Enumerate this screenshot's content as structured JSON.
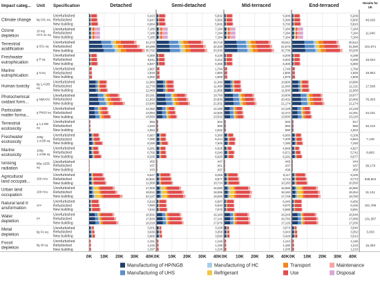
{
  "chart_data": {
    "type": "bar",
    "orientation": "horizontal",
    "stacked": true,
    "grid": true,
    "legend_position": "bottom",
    "headers": {
      "category": "Impact categ...",
      "unit": "Unit",
      "spec": "Specification",
      "results": "Results for UK"
    },
    "panels": [
      "Detached",
      "Semi-detached",
      "Mid-terraced",
      "End-terraced"
    ],
    "xticks": [
      "0K",
      "10K",
      "20K",
      "30K",
      "40K"
    ],
    "xlim": [
      0,
      42000
    ],
    "specs": [
      "Unrefurbished",
      "Refurbished",
      "New building"
    ],
    "series": [
      {
        "name": "Manufacturing of HP/NGB",
        "color": "#1f3f6e"
      },
      {
        "name": "Manufacturing of UHS",
        "color": "#5b8fc9"
      },
      {
        "name": "Manufacturing of HC",
        "color": "#a9cde8"
      },
      {
        "name": "Refrigerant",
        "color": "#f2c542"
      },
      {
        "name": "Transport",
        "color": "#f0851a"
      },
      {
        "name": "Use",
        "color": "#e04d4d"
      },
      {
        "name": "Maintenance",
        "color": "#f5a3a0"
      },
      {
        "name": "Disposal",
        "color": "#d8a8d4"
      }
    ],
    "categories": [
      {
        "name": [
          "Climate change"
        ],
        "unit": [
          "kg CO₂ eq"
        ],
        "result": "46,020",
        "profile": [
          0.12,
          0.07,
          0.02,
          0.03,
          0.05,
          0.63,
          0.08
        ],
        "values": [
          [
            5423,
            5832,
            5408,
            5209
          ],
          [
            5647,
            5560,
            5390,
            5500
          ],
          [
            6064,
            5906,
            5700,
            5810
          ]
        ]
      },
      {
        "name": [
          "Ozone",
          "depletion"
        ],
        "unit": [
          "10 mg",
          "CFC-11 eq"
        ],
        "result": "11,940",
        "profile": [
          0.14,
          0.05,
          0.05,
          0.08,
          0.04,
          0.1,
          0.2,
          0.34
        ],
        "values": [
          [
            7185,
            7184,
            7184,
            7184
          ],
          [
            7185,
            7184,
            7184,
            7184
          ],
          [
            7185,
            7184,
            7184,
            7184
          ]
        ]
      },
      {
        "name": [
          "Terrestrial",
          "acidification"
        ],
        "unit": [
          "g SO₂ eq"
        ],
        "result": "101,871",
        "profile": [
          0.26,
          0.2,
          0.05,
          0.06,
          0.1,
          0.28,
          0.05
        ],
        "values": [
          [
            31273,
            30718,
            30611,
            30612
          ],
          [
            33499,
            32330,
            31576,
            31590
          ],
          [
            36792,
            33330,
            32739,
            33200
          ]
        ]
      },
      {
        "name": [
          "Freshwater",
          "eutrophication"
        ],
        "unit": [
          "g P eq"
        ],
        "result": "18,634",
        "profile": [
          0.12,
          0.06,
          0.02,
          0.03,
          0.05,
          0.64,
          0.08
        ],
        "values": [
          [
            5300,
            5128,
            5209,
            5199
          ],
          [
            5511,
            5412,
            5302,
            5288
          ],
          [
            5827,
            5465,
            5405,
            5360
          ]
        ]
      },
      {
        "name": [
          "Marine",
          "eutrophication"
        ],
        "unit": [
          "g N eq"
        ],
        "result": "18,854",
        "profile": [
          0.12,
          0.06,
          0.02,
          0.03,
          0.05,
          0.64,
          0.08
        ],
        "values": [
          [
            1867,
            1784,
            1748,
            1769
          ],
          [
            1919,
            1850,
            1805,
            1826
          ],
          [
            2062,
            1909,
            1879,
            1909
          ]
        ]
      },
      {
        "name": [
          "Human toxicity"
        ],
        "unit": [
          "kg 1,4-DB",
          "eq"
        ],
        "result": "17,508",
        "profile": [
          0.36,
          0.12,
          0.03,
          0.04,
          0.06,
          0.33,
          0.06
        ],
        "values": [
          [
            11966,
            11340,
            10900,
            10990
          ],
          [
            11779,
            11400,
            11040,
            11131
          ],
          [
            12469,
            11856,
            11500,
            11560
          ]
        ]
      },
      {
        "name": [
          "Photochemical",
          "oxidant form..."
        ],
        "unit": [
          "g NMVOC"
        ],
        "result": "76,303",
        "profile": [
          0.28,
          0.19,
          0.04,
          0.06,
          0.1,
          0.27,
          0.06
        ],
        "values": [
          [
            20191,
            19769,
            19608,
            19977
          ],
          [
            21653,
            20830,
            20431,
            20466
          ],
          [
            23640,
            21931,
            21174,
            21274
          ]
        ]
      },
      {
        "name": [
          "Particulate",
          "matter forma..."
        ],
        "unit": [
          "g PM10 eq"
        ],
        "result": "34,231",
        "profile": [
          0.28,
          0.19,
          0.04,
          0.06,
          0.1,
          0.27,
          0.06
        ],
        "values": [
          [
            12462,
            12190,
            12128,
            12128
          ],
          [
            13054,
            12646,
            12472,
            12491
          ],
          [
            14593,
            13510,
            13000,
            13120
          ]
        ]
      },
      {
        "name": [
          "Terrestrial",
          "ecotoxicity"
        ],
        "unit": [
          "g 1,4-DB",
          "eq"
        ],
        "result": "40,210",
        "profile": [
          0.3,
          0.15,
          0.03,
          0.05,
          0.08,
          0.32,
          0.07
        ],
        "values": [
          [
            956,
            942,
            920,
            917
          ],
          [
            1020,
            990,
            965,
            986
          ],
          [
            1064,
            1022,
            990,
            1004
          ]
        ]
      },
      {
        "name": [
          "Freshwater",
          "ecotoxicity"
        ],
        "unit": [
          "100g",
          "1,4-DB eq"
        ],
        "result": "7,146",
        "profile": [
          0.22,
          0.1,
          0.03,
          0.04,
          0.06,
          0.47,
          0.08
        ],
        "values": [
          [
            6667,
            6300,
            6060,
            6109
          ],
          [
            7390,
            6214,
            7400,
            6664
          ],
          [
            9155,
            7645,
            7180,
            7150
          ]
        ]
      },
      {
        "name": [
          "Marine",
          "ecotoxicity"
        ],
        "unit": [
          "100g",
          "1,4-DB eq"
        ],
        "result": "8,863",
        "profile": [
          0.22,
          0.1,
          0.03,
          0.04,
          0.06,
          0.47,
          0.08
        ],
        "values": [
          [
            6281,
            6028,
            4849,
            4827
          ],
          [
            6766,
            6240,
            6671,
            5742
          ],
          [
            8335,
            6620,
            6291,
            6677
          ]
        ]
      },
      {
        "name": [
          "Ionising",
          "radiation"
        ],
        "unit": [
          "kBq U235",
          "eq"
        ],
        "result": "38,179",
        "profile": [
          0.25,
          0.15,
          0.03,
          0.05,
          0.08,
          0.36,
          0.08
        ],
        "values": [
          [
            455,
            447,
            445,
            444
          ],
          [
            437,
            451,
            437,
            437
          ],
          [
            470,
            437,
            438,
            450
          ]
        ]
      },
      {
        "name": [
          "Agricultural",
          "land occupati..."
        ],
        "unit": [
          "100 m²a"
        ],
        "result": "538,604",
        "profile": [
          0.12,
          0.06,
          0.02,
          0.03,
          0.05,
          0.64,
          0.08
        ],
        "values": [
          [
            9547,
            9265,
            9117,
            9100
          ],
          [
            10831,
            9977,
            9713,
            9773
          ],
          [
            11569,
            10714,
            10183,
            10350
          ]
        ]
      },
      {
        "name": [
          "Urban land",
          "occupation"
        ],
        "unit": [
          "100 m²a"
        ],
        "result": "31,131",
        "profile": [
          0.1,
          0.05,
          0.03,
          0.18,
          0.06,
          0.5,
          0.08
        ],
        "values": [
          [
            17000,
            16090,
            16990,
            16990
          ],
          [
            18812,
            18058,
            18160,
            18454
          ],
          [
            22127,
            19000,
            17748,
            18780
          ]
        ]
      },
      {
        "name": [
          "Natural land tr",
          "ansformation"
        ],
        "unit": [
          "cm²"
        ],
        "result": "161,786",
        "profile": [
          0.12,
          0.06,
          0.02,
          0.03,
          0.05,
          0.64,
          0.08
        ],
        "values": [
          [
            6618,
            6607,
            6445,
            6456
          ],
          [
            7080,
            6640,
            6570,
            6445
          ],
          [
            7616,
            7070,
            6688,
            6691
          ]
        ]
      },
      {
        "name": [
          "Water",
          "depletion"
        ],
        "unit": [
          "m³"
        ],
        "result": "131,367",
        "profile": [
          0.22,
          0.12,
          0.03,
          0.04,
          0.06,
          0.46,
          0.07
        ],
        "values": [
          [
            16591,
            16183,
            16249,
            16049
          ],
          [
            17834,
            17141,
            16783,
            17089
          ],
          [
            19319,
            17679,
            17126,
            17256
          ]
        ]
      },
      {
        "name": [
          "Metal",
          "depletion"
        ],
        "unit": [
          "kg Fe eq"
        ],
        "result": "3,033",
        "profile": [
          0.3,
          0.15,
          0.03,
          0.05,
          0.08,
          0.32,
          0.07
        ],
        "values": [
          [
            3201,
            3108,
            3074,
            3040
          ],
          [
            3639,
            3358,
            3343,
            3352
          ],
          [
            3966,
            3590,
            3428,
            3510
          ]
        ]
      },
      {
        "name": [
          "Fossil",
          "depletion"
        ],
        "unit": [
          "kg oil eq"
        ],
        "result": "15,353",
        "profile": [
          0.12,
          0.07,
          0.02,
          0.03,
          0.05,
          0.63,
          0.08
        ],
        "values": [
          [
            1151,
            1146,
            1144,
            1146
          ],
          [
            1232,
            1196,
            1180,
            1210
          ],
          [
            1297,
            1226,
            1205,
            1210
          ]
        ]
      }
    ]
  }
}
